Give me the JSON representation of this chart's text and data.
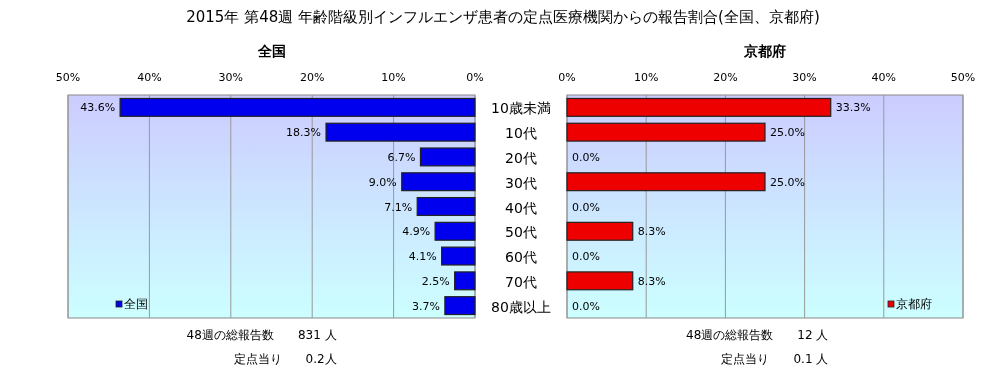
{
  "chart_data": [
    {
      "type": "bar",
      "orientation": "horizontal",
      "title": "2015年 第48週 年齢階級別インフルエンザ患者の定点医療機関からの報告割合(全国、京都府)",
      "subtitle": "全国",
      "categories": [
        "10歳未満",
        "10代",
        "20代",
        "30代",
        "40代",
        "50代",
        "60代",
        "70代",
        "80歳以上"
      ],
      "series": [
        {
          "name": "全国",
          "color": "#0000ee",
          "values": [
            43.6,
            18.3,
            6.7,
            9.0,
            7.1,
            4.9,
            4.1,
            2.5,
            3.7
          ],
          "value_labels": [
            "43.6%",
            "18.3%",
            "6.7%",
            "9.0%",
            "7.1%",
            "4.9%",
            "4.1%",
            "2.5%",
            "3.7%"
          ]
        }
      ],
      "xlim": [
        50,
        0
      ],
      "xticks": [
        {
          "value": 50,
          "label": "50%"
        },
        {
          "value": 40,
          "label": "40%"
        },
        {
          "value": 30,
          "label": "30%"
        },
        {
          "value": 20,
          "label": "20%"
        },
        {
          "value": 10,
          "label": "10%"
        },
        {
          "value": 0,
          "label": "0%"
        }
      ],
      "grid": "x",
      "legend": "bottom left",
      "annotations": [
        "48週の総報告数　　831 人",
        "定点当り　　0.2人"
      ]
    },
    {
      "type": "bar",
      "orientation": "horizontal",
      "subtitle": "京都府",
      "series": [
        {
          "name": "京都府",
          "color": "#ee0000",
          "values": [
            33.3,
            25.0,
            0.0,
            25.0,
            0.0,
            8.3,
            0.0,
            8.3,
            0.0
          ],
          "value_labels": [
            "33.3%",
            "25.0%",
            "0.0%",
            "25.0%",
            "0.0%",
            "8.3%",
            "0.0%",
            "8.3%",
            "0.0%"
          ]
        }
      ],
      "xlim": [
        0,
        50
      ],
      "xticks": [
        {
          "value": 0,
          "label": "0%"
        },
        {
          "value": 10,
          "label": "10%"
        },
        {
          "value": 20,
          "label": "20%"
        },
        {
          "value": 30,
          "label": "30%"
        },
        {
          "value": 40,
          "label": "40%"
        },
        {
          "value": 50,
          "label": "50%"
        }
      ],
      "grid": "x",
      "legend": "bottom right",
      "annotations": [
        "48週の総報告数　　12 人",
        "定点当り　　0.1 人"
      ]
    }
  ]
}
